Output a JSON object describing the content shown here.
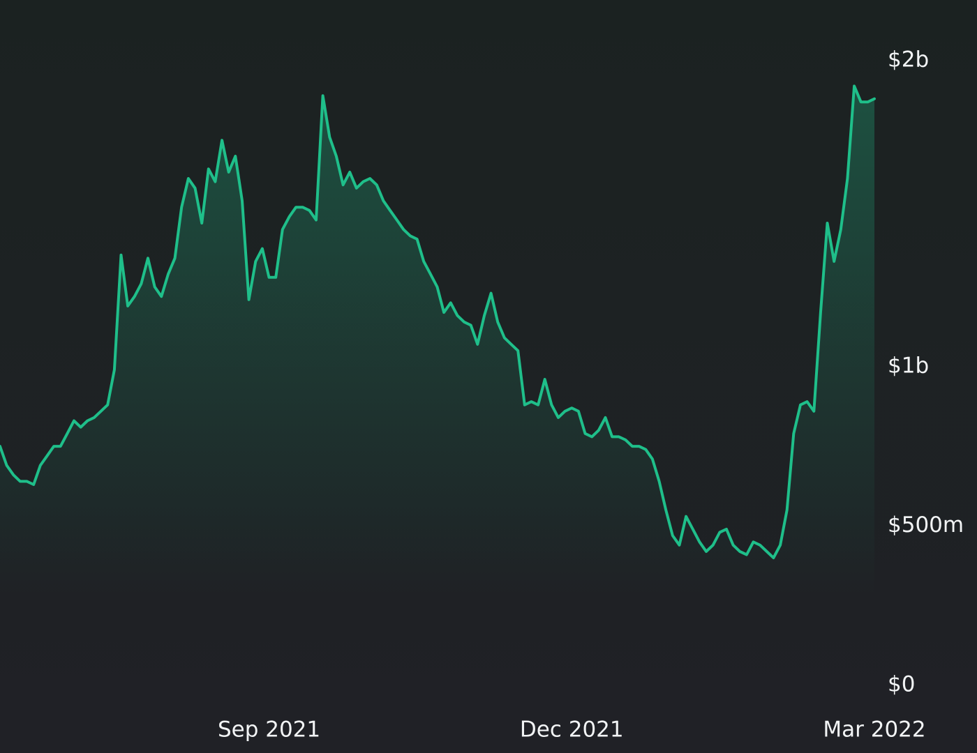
{
  "chart_data": {
    "type": "area",
    "color": "#1fbf8a",
    "categories": [
      null,
      null,
      null,
      null,
      null,
      null,
      null,
      null,
      null,
      null,
      null,
      null,
      null,
      null,
      null,
      null,
      null,
      null,
      null,
      null,
      null,
      null,
      null,
      null,
      null,
      null,
      null,
      null,
      null,
      null,
      null,
      null,
      null,
      null,
      null,
      null,
      null,
      null,
      null,
      null,
      "Sep 2021",
      null,
      null,
      null,
      null,
      null,
      null,
      null,
      null,
      null,
      null,
      null,
      null,
      null,
      null,
      null,
      null,
      null,
      null,
      null,
      null,
      null,
      null,
      null,
      null,
      null,
      null,
      null,
      null,
      null,
      null,
      null,
      null,
      null,
      null,
      null,
      null,
      null,
      null,
      null,
      null,
      null,
      null,
      null,
      null,
      "Dec 2021",
      null,
      null,
      null,
      null,
      null,
      null,
      null,
      null,
      null,
      null,
      null,
      null,
      null,
      null,
      null,
      null,
      null,
      null,
      null,
      null,
      null,
      null,
      null,
      null,
      null,
      null,
      null,
      null,
      null,
      null,
      null,
      null,
      null,
      null,
      null,
      null,
      null,
      null,
      null,
      null,
      null,
      null,
      null,
      null,
      "Mar 2022"
    ],
    "values": [
      750000000,
      690000000,
      660000000,
      640000000,
      640000000,
      630000000,
      690000000,
      720000000,
      750000000,
      750000000,
      790000000,
      830000000,
      810000000,
      830000000,
      840000000,
      860000000,
      880000000,
      990000000,
      1350000000,
      1190000000,
      1220000000,
      1260000000,
      1340000000,
      1250000000,
      1220000000,
      1290000000,
      1340000000,
      1500000000,
      1590000000,
      1560000000,
      1450000000,
      1620000000,
      1580000000,
      1710000000,
      1610000000,
      1660000000,
      1520000000,
      1210000000,
      1330000000,
      1370000000,
      1280000000,
      1280000000,
      1430000000,
      1470000000,
      1500000000,
      1500000000,
      1490000000,
      1460000000,
      1850000000,
      1720000000,
      1660000000,
      1570000000,
      1610000000,
      1560000000,
      1580000000,
      1590000000,
      1570000000,
      1520000000,
      1490000000,
      1460000000,
      1430000000,
      1410000000,
      1400000000,
      1330000000,
      1290000000,
      1250000000,
      1170000000,
      1200000000,
      1160000000,
      1140000000,
      1130000000,
      1070000000,
      1160000000,
      1230000000,
      1140000000,
      1090000000,
      1070000000,
      1050000000,
      880000000,
      890000000,
      880000000,
      960000000,
      880000000,
      840000000,
      860000000,
      870000000,
      860000000,
      790000000,
      780000000,
      800000000,
      840000000,
      780000000,
      780000000,
      770000000,
      750000000,
      750000000,
      740000000,
      710000000,
      640000000,
      550000000,
      470000000,
      440000000,
      530000000,
      490000000,
      450000000,
      420000000,
      440000000,
      480000000,
      490000000,
      440000000,
      420000000,
      410000000,
      450000000,
      440000000,
      420000000,
      400000000,
      440000000,
      550000000,
      790000000,
      880000000,
      890000000,
      860000000,
      1170000000,
      1450000000,
      1330000000,
      1430000000,
      1590000000,
      1880000000,
      1830000000,
      1830000000,
      1840000000
    ],
    "ylim": [
      0,
      2150000000
    ],
    "yticks": [
      {
        "value": 0,
        "label": "$0"
      },
      {
        "value": 500000000,
        "label": "$500m"
      },
      {
        "value": 1000000000,
        "label": "$1b"
      },
      {
        "value": 2000000000,
        "label": "$2b"
      }
    ]
  }
}
